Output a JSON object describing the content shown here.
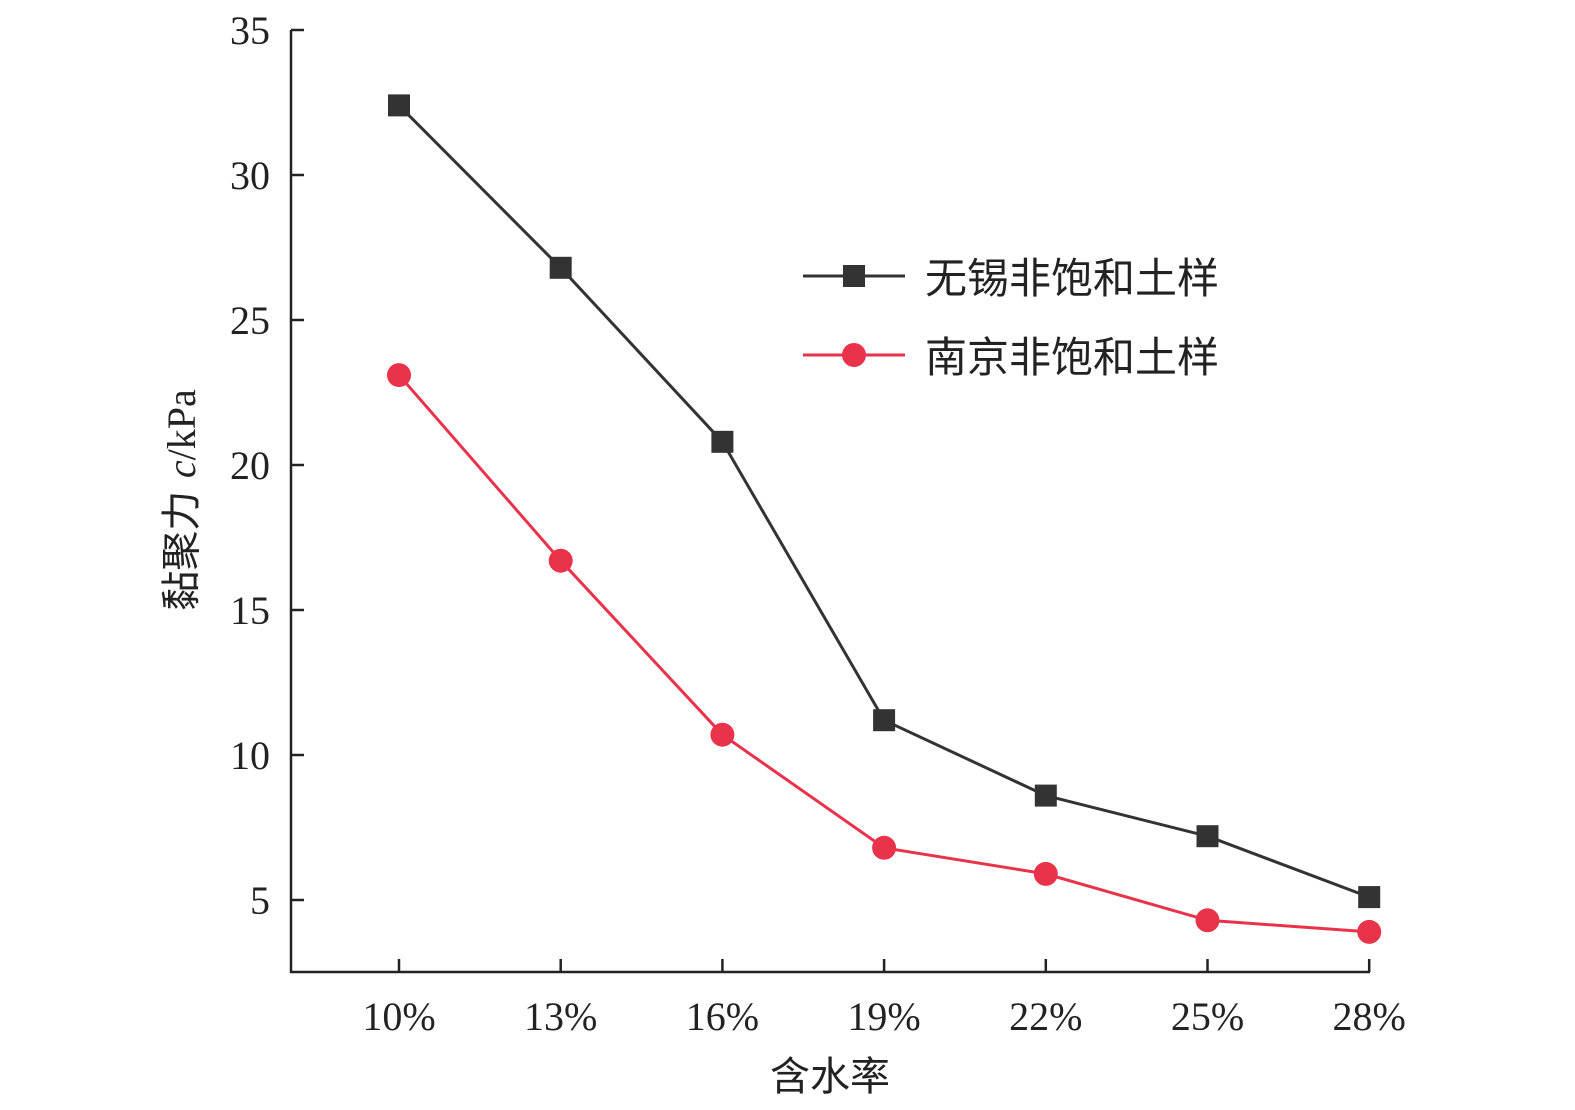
{
  "chart_data": {
    "type": "line",
    "title": "",
    "xlabel": "含水率",
    "ylabel_prefix": "黏聚力 ",
    "ylabel_var": "c",
    "ylabel_unit": "/kPa",
    "categories": [
      "10%",
      "13%",
      "16%",
      "19%",
      "22%",
      "25%",
      "28%"
    ],
    "yticks": [
      5,
      10,
      15,
      20,
      25,
      30,
      35
    ],
    "ylim": [
      2.5,
      35
    ],
    "grid": false,
    "legend_position": "top-right",
    "series": [
      {
        "name": "无锡非饱和土样",
        "marker": "square",
        "color": "#333333",
        "values": [
          32.4,
          26.8,
          20.8,
          11.2,
          8.6,
          7.2,
          5.1
        ]
      },
      {
        "name": "南京非饱和土样",
        "marker": "circle",
        "color": "#e8334a",
        "values": [
          23.1,
          16.7,
          10.7,
          6.8,
          5.9,
          4.3,
          3.9
        ]
      }
    ]
  }
}
